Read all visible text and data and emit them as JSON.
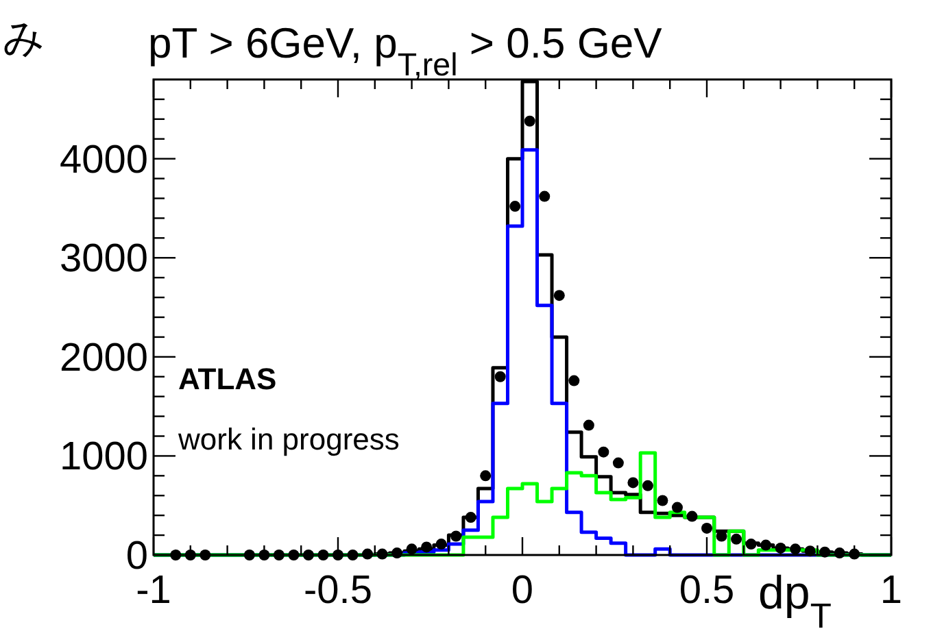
{
  "chart_data": {
    "type": "histogram",
    "title": "pT > 6GeV, p$_{T,rel}$ > 0.5 GeV",
    "xlabel": "dp$_{T}$",
    "ylabel": "み",
    "annotations": [
      "ATLAS",
      "work in progress"
    ],
    "bins": [
      -1,
      -0.96,
      -0.92,
      -0.88,
      -0.84,
      -0.8,
      -0.76,
      -0.72,
      -0.68,
      -0.64,
      -0.6,
      -0.56,
      -0.52,
      -0.48,
      -0.44,
      -0.4,
      -0.36,
      -0.32,
      -0.28,
      -0.24,
      -0.2,
      -0.16,
      -0.12,
      -0.08,
      -0.04,
      0,
      0.04,
      0.08,
      0.12,
      0.16,
      0.2,
      0.24,
      0.28,
      0.32,
      0.36,
      0.4,
      0.44,
      0.48,
      0.52,
      0.56,
      0.6,
      0.64,
      0.68,
      0.72,
      0.76,
      0.8,
      0.84,
      0.88,
      0.92,
      0.96,
      1
    ],
    "xlim": [
      -1,
      1
    ],
    "ylim": [
      0,
      4800
    ],
    "xticks": [
      -1,
      {
        "value": -0.9,
        "label": null
      },
      {
        "value": -0.8,
        "label": null
      },
      {
        "value": -0.7,
        "label": null
      },
      {
        "value": -0.6,
        "label": null
      },
      -0.5,
      {
        "value": -0.4,
        "label": null
      },
      {
        "value": -0.3,
        "label": null
      },
      {
        "value": -0.2,
        "label": null
      },
      {
        "value": -0.1,
        "label": null
      },
      0,
      {
        "value": 0.1,
        "label": null
      },
      {
        "value": 0.2,
        "label": null
      },
      {
        "value": 0.3,
        "label": null
      },
      {
        "value": 0.4,
        "label": null
      },
      0.5,
      {
        "value": 0.6,
        "label": null
      },
      {
        "value": 0.7,
        "label": null
      },
      {
        "value": 0.8,
        "label": null
      },
      {
        "value": 0.9,
        "label": null
      },
      1
    ],
    "yticks": [
      0,
      {
        "value": 200,
        "label": null
      },
      {
        "value": 400,
        "label": null
      },
      {
        "value": 600,
        "label": null
      },
      {
        "value": 800,
        "label": null
      },
      1000,
      {
        "value": 1200,
        "label": null
      },
      {
        "value": 1400,
        "label": null
      },
      {
        "value": 1600,
        "label": null
      },
      {
        "value": 1800,
        "label": null
      },
      2000,
      {
        "value": 2200,
        "label": null
      },
      {
        "value": 2400,
        "label": null
      },
      {
        "value": 2600,
        "label": null
      },
      {
        "value": 2800,
        "label": null
      },
      3000,
      {
        "value": 3200,
        "label": null
      },
      {
        "value": 3400,
        "label": null
      },
      {
        "value": 3600,
        "label": null
      },
      {
        "value": 3800,
        "label": null
      },
      4000,
      {
        "value": 4200,
        "label": null
      },
      {
        "value": 4400,
        "label": null
      },
      {
        "value": 4600,
        "label": null
      }
    ],
    "series": [
      {
        "color": "#000000",
        "values": [
          0,
          0,
          0,
          0,
          0,
          0,
          0,
          0,
          0,
          0,
          0,
          0,
          0,
          0,
          0,
          10,
          20,
          40,
          60,
          100,
          200,
          380,
          670,
          1890,
          4000,
          4780,
          3030,
          2200,
          1240,
          990,
          790,
          630,
          610,
          430,
          420,
          400,
          380,
          380,
          240,
          240,
          120,
          100,
          70,
          60,
          40,
          30,
          20,
          10,
          0,
          0
        ]
      },
      {
        "color": "#0000ff",
        "values": [
          0,
          0,
          0,
          0,
          0,
          0,
          0,
          0,
          0,
          0,
          0,
          0,
          0,
          0,
          0,
          0,
          0,
          20,
          30,
          50,
          110,
          250,
          540,
          1530,
          3320,
          4090,
          2520,
          1530,
          430,
          230,
          170,
          120,
          0,
          0,
          60,
          0,
          0,
          0,
          0,
          0,
          0,
          0,
          0,
          0,
          0,
          0,
          0,
          0,
          0,
          0
        ]
      },
      {
        "color": "#00ff00",
        "values": [
          0,
          0,
          0,
          0,
          0,
          0,
          0,
          0,
          0,
          0,
          0,
          0,
          0,
          0,
          0,
          0,
          0,
          0,
          0,
          0,
          0,
          180,
          180,
          380,
          670,
          720,
          540,
          670,
          830,
          800,
          630,
          560,
          580,
          1030,
          380,
          430,
          380,
          380,
          0,
          240,
          0,
          50,
          50,
          50,
          50,
          0,
          0,
          0,
          0,
          0
        ]
      },
      {
        "type": "scatter",
        "marker": "circle",
        "color": "#000000",
        "x": [
          -0.94,
          -0.9,
          -0.86,
          -0.74,
          -0.7,
          -0.66,
          -0.62,
          -0.58,
          -0.54,
          -0.5,
          -0.46,
          -0.42,
          -0.38,
          -0.34,
          -0.3,
          -0.26,
          -0.22,
          -0.18,
          -0.14,
          -0.1,
          -0.06,
          -0.02,
          0.02,
          0.06,
          0.1,
          0.14,
          0.18,
          0.22,
          0.26,
          0.3,
          0.34,
          0.38,
          0.42,
          0.46,
          0.5,
          0.54,
          0.58,
          0.62,
          0.66,
          0.7,
          0.74,
          0.78,
          0.82,
          0.86,
          0.9
        ],
        "values": [
          0,
          0,
          0,
          0,
          0,
          0,
          0,
          0,
          0,
          0,
          0,
          10,
          10,
          20,
          60,
          80,
          110,
          190,
          380,
          800,
          1800,
          3520,
          4380,
          3620,
          2620,
          1760,
          1310,
          1040,
          930,
          730,
          700,
          550,
          480,
          390,
          270,
          190,
          160,
          110,
          100,
          70,
          60,
          40,
          30,
          20,
          10
        ]
      }
    ]
  }
}
